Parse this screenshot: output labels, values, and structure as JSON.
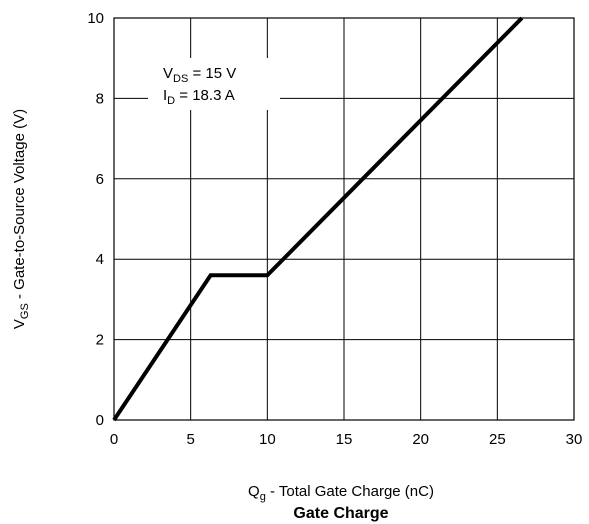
{
  "chart_data": {
    "type": "line",
    "title": "Gate Charge",
    "xlabel": {
      "main": "Q",
      "sub": "g",
      "rest": " - Total Gate Charge (nC)"
    },
    "ylabel": {
      "main": "V",
      "sub": "GS",
      "rest": " - Gate-to-Source Voltage (V)"
    },
    "xlim": [
      0,
      30
    ],
    "ylim": [
      0,
      10
    ],
    "xticks": [
      0,
      5,
      10,
      15,
      20,
      25,
      30
    ],
    "yticks": [
      0,
      2,
      4,
      6,
      8,
      10
    ],
    "grid": true,
    "series": [
      {
        "x": [
          0,
          6.3,
          10,
          26.6
        ],
        "y": [
          0,
          3.6,
          3.6,
          10
        ],
        "color": "#000000"
      }
    ],
    "annotations": [
      {
        "main": "V",
        "sub": "DS",
        "rest": " = 15 V"
      },
      {
        "main": "I",
        "sub": "D",
        "rest": " =  18.3 A"
      }
    ]
  }
}
